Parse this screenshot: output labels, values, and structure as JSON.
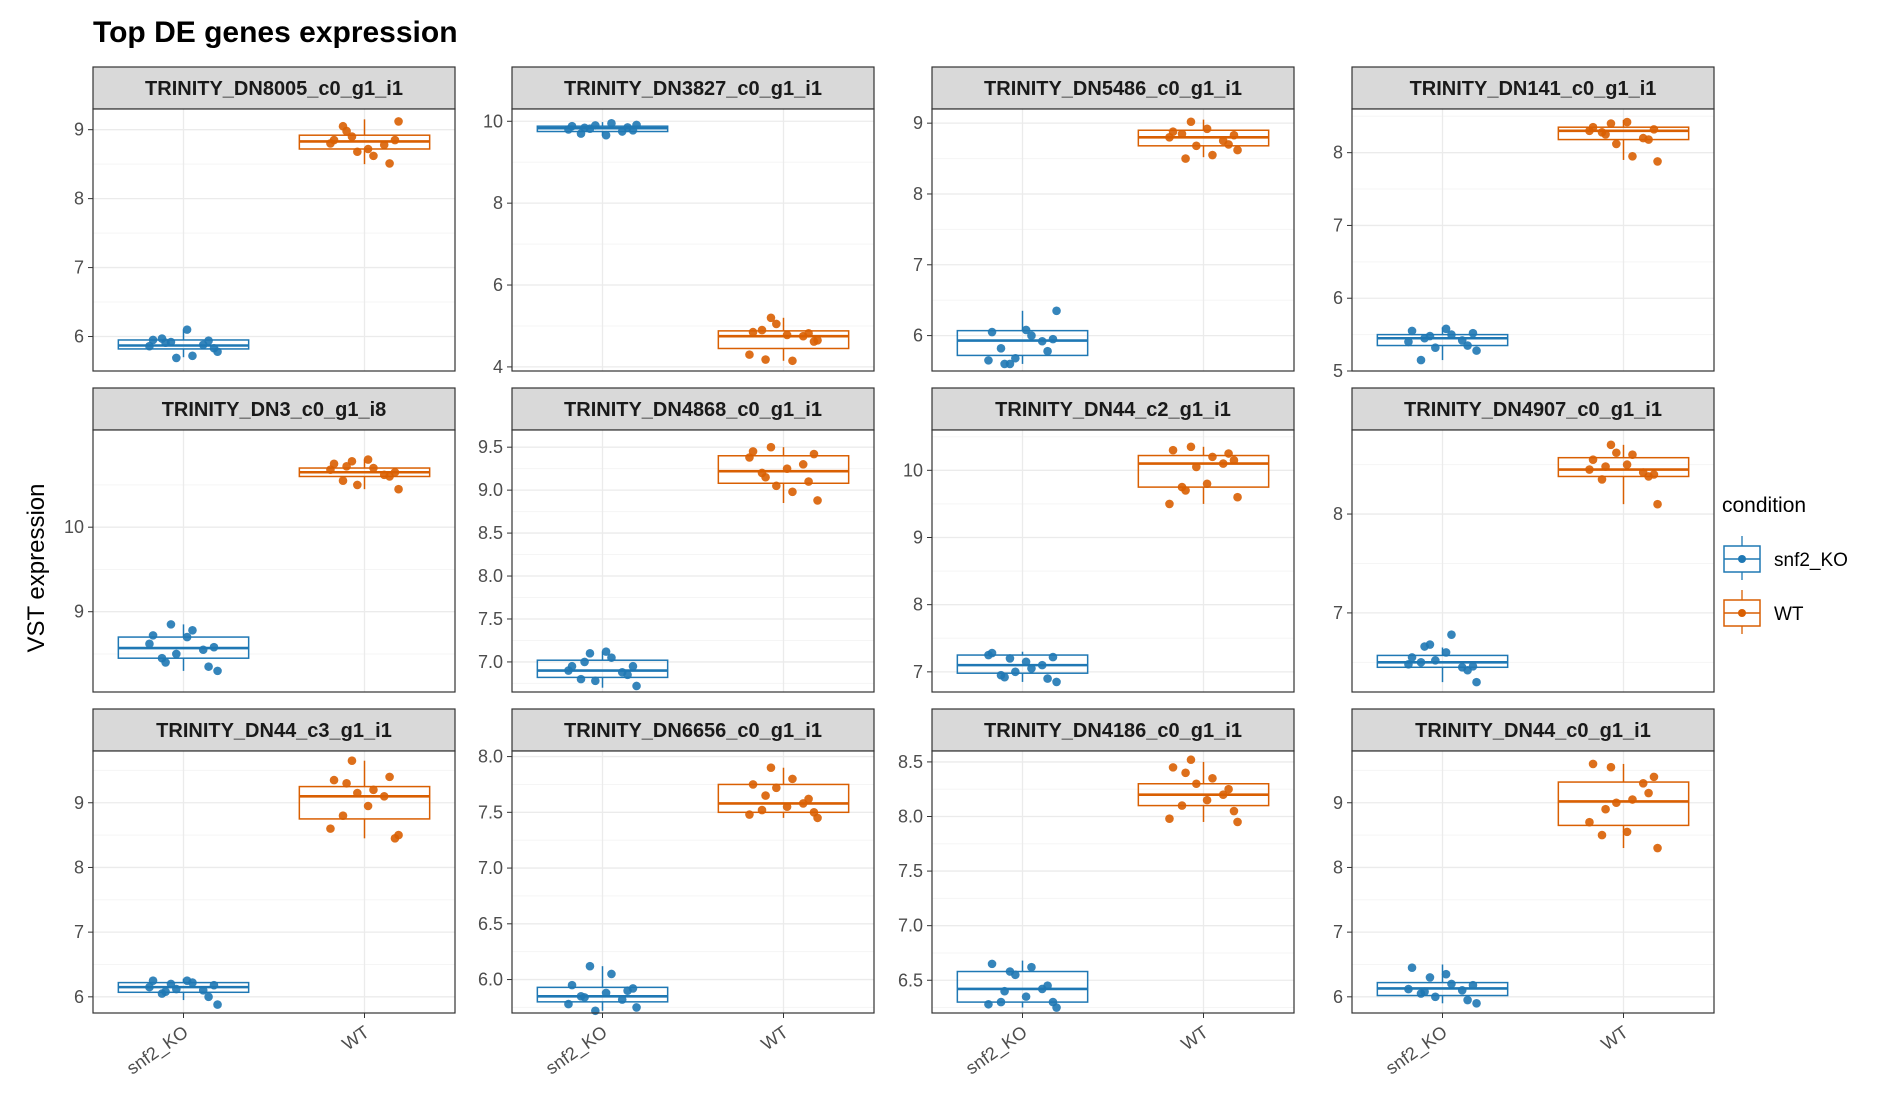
{
  "colors": {
    "snf2_KO": "#1f78b4",
    "WT": "#d95f02",
    "strip_bg": "#d9d9d9",
    "panel_border": "#333333",
    "grid_major": "#ebebeb",
    "grid_minor": "#f5f5f5"
  },
  "chart_data": {
    "type": "boxplot",
    "title": "Top DE genes expression",
    "ylabel": "VST expression",
    "xlabel": "",
    "categories": [
      "snf2_KO",
      "WT"
    ],
    "legend": {
      "title": "condition",
      "entries": [
        "snf2_KO",
        "WT"
      ],
      "position": "right"
    },
    "grid": true,
    "panels": [
      {
        "gene": "TRINITY_DN8005_c0_g1_i1",
        "ylim": [
          5.5,
          9.3
        ],
        "yticks": [
          6,
          7,
          8,
          9
        ],
        "groups": [
          {
            "name": "snf2_KO",
            "stats": [
              5.7,
              5.82,
              5.87,
              5.95,
              6.1
            ],
            "points": [
              5.95,
              5.88,
              5.92,
              5.78,
              5.97,
              5.72,
              5.86,
              5.94,
              6.1,
              5.69,
              5.83,
              5.91
            ]
          },
          {
            "name": "WT",
            "stats": [
              8.5,
              8.72,
              8.83,
              8.92,
              9.15
            ],
            "points": [
              8.85,
              8.78,
              8.9,
              9.12,
              9.05,
              8.62,
              8.8,
              8.51,
              8.72,
              8.68,
              8.85,
              8.98
            ]
          }
        ]
      },
      {
        "gene": "TRINITY_DN3827_c0_g1_i1",
        "ylim": [
          3.9,
          10.3
        ],
        "yticks": [
          4,
          6,
          8,
          10
        ],
        "groups": [
          {
            "name": "snf2_KO",
            "stats": [
              9.65,
              9.75,
              9.83,
              9.88,
              9.98
            ],
            "points": [
              9.88,
              9.75,
              9.82,
              9.91,
              9.7,
              9.95,
              9.8,
              9.85,
              9.66,
              9.9,
              9.78,
              9.84
            ]
          },
          {
            "name": "WT",
            "stats": [
              4.15,
              4.45,
              4.75,
              4.88,
              5.2
            ],
            "points": [
              4.85,
              4.75,
              5.2,
              4.65,
              4.9,
              4.15,
              4.3,
              4.82,
              4.78,
              5.05,
              4.62,
              4.18
            ]
          }
        ]
      },
      {
        "gene": "TRINITY_DN5486_c0_g1_i1",
        "ylim": [
          5.5,
          9.2
        ],
        "yticks": [
          6,
          7,
          8,
          9
        ],
        "groups": [
          {
            "name": "snf2_KO",
            "stats": [
              5.6,
              5.72,
              5.93,
              6.07,
              6.35
            ],
            "points": [
              6.05,
              5.92,
              5.6,
              6.35,
              5.82,
              6.0,
              5.65,
              5.78,
              6.08,
              5.68,
              5.95,
              5.6
            ]
          },
          {
            "name": "WT",
            "stats": [
              8.52,
              8.68,
              8.8,
              8.9,
              9.05
            ],
            "points": [
              8.88,
              8.75,
              9.02,
              8.62,
              8.85,
              8.55,
              8.8,
              8.7,
              8.92,
              8.68,
              8.83,
              8.5
            ]
          }
        ]
      },
      {
        "gene": "TRINITY_DN141_c0_g1_i1",
        "ylim": [
          5.0,
          8.6
        ],
        "yticks": [
          5,
          6,
          7,
          8
        ],
        "groups": [
          {
            "name": "snf2_KO",
            "stats": [
              5.15,
              5.35,
              5.45,
              5.5,
              5.6
            ],
            "points": [
              5.55,
              5.42,
              5.48,
              5.28,
              5.15,
              5.5,
              5.4,
              5.35,
              5.58,
              5.32,
              5.52,
              5.45
            ]
          },
          {
            "name": "WT",
            "stats": [
              7.9,
              8.18,
              8.3,
              8.35,
              8.45
            ],
            "points": [
              8.35,
              8.2,
              8.4,
              7.88,
              8.28,
              7.95,
              8.3,
              8.18,
              8.42,
              8.12,
              8.32,
              8.25
            ]
          }
        ]
      },
      {
        "gene": "TRINITY_DN3_c0_g1_i8",
        "ylim": [
          8.05,
          11.15
        ],
        "yticks": [
          9,
          10
        ],
        "groups": [
          {
            "name": "snf2_KO",
            "stats": [
              8.3,
              8.45,
              8.57,
              8.7,
              8.85
            ],
            "points": [
              8.72,
              8.55,
              8.85,
              8.3,
              8.45,
              8.78,
              8.62,
              8.35,
              8.7,
              8.5,
              8.58,
              8.4
            ]
          },
          {
            "name": "WT",
            "stats": [
              10.45,
              10.6,
              10.65,
              10.7,
              10.8
            ],
            "points": [
              10.75,
              10.62,
              10.78,
              10.45,
              10.55,
              10.7,
              10.68,
              10.6,
              10.8,
              10.5,
              10.65,
              10.72
            ]
          }
        ]
      },
      {
        "gene": "TRINITY_DN4868_c0_g1_i1",
        "ylim": [
          6.65,
          9.7
        ],
        "yticks": [
          7.0,
          7.5,
          8.0,
          8.5,
          9.0,
          9.5
        ],
        "groups": [
          {
            "name": "snf2_KO",
            "stats": [
              6.7,
              6.82,
              6.9,
              7.02,
              7.12
            ],
            "points": [
              6.95,
              6.88,
              7.1,
              6.72,
              6.8,
              7.05,
              6.9,
              6.85,
              7.12,
              6.78,
              6.95,
              7.0
            ]
          },
          {
            "name": "WT",
            "stats": [
              8.85,
              9.08,
              9.22,
              9.4,
              9.5
            ],
            "points": [
              9.45,
              9.3,
              9.5,
              8.88,
              9.2,
              8.98,
              9.38,
              9.1,
              9.25,
              9.05,
              9.42,
              9.15
            ]
          }
        ]
      },
      {
        "gene": "TRINITY_DN44_c2_g1_i1",
        "ylim": [
          6.7,
          10.6
        ],
        "yticks": [
          7,
          8,
          9,
          10
        ],
        "groups": [
          {
            "name": "snf2_KO",
            "stats": [
              6.85,
              6.98,
              7.1,
              7.25,
              7.3
            ],
            "points": [
              7.28,
              7.1,
              7.2,
              6.85,
              6.95,
              7.05,
              7.25,
              6.9,
              7.15,
              7.0,
              7.22,
              6.92
            ]
          },
          {
            "name": "WT",
            "stats": [
              9.5,
              9.75,
              10.1,
              10.22,
              10.35
            ],
            "points": [
              10.3,
              10.1,
              10.35,
              9.6,
              9.75,
              10.2,
              9.5,
              10.25,
              9.8,
              10.05,
              10.15,
              9.7
            ]
          }
        ]
      },
      {
        "gene": "TRINITY_DN4907_c0_g1_i1",
        "ylim": [
          6.2,
          8.85
        ],
        "yticks": [
          7,
          8
        ],
        "groups": [
          {
            "name": "snf2_KO",
            "stats": [
              6.3,
              6.45,
              6.5,
              6.57,
              6.65
            ],
            "points": [
              6.55,
              6.45,
              6.68,
              6.3,
              6.5,
              6.78,
              6.48,
              6.42,
              6.6,
              6.52,
              6.46,
              6.66
            ]
          },
          {
            "name": "WT",
            "stats": [
              8.1,
              8.38,
              8.45,
              8.57,
              8.7
            ],
            "points": [
              8.55,
              8.42,
              8.7,
              8.1,
              8.35,
              8.6,
              8.45,
              8.38,
              8.5,
              8.62,
              8.4,
              8.48
            ]
          }
        ]
      },
      {
        "gene": "TRINITY_DN44_c3_g1_i1",
        "ylim": [
          5.75,
          9.8
        ],
        "yticks": [
          6,
          7,
          8,
          9
        ],
        "groups": [
          {
            "name": "snf2_KO",
            "stats": [
              5.95,
              6.07,
              6.15,
              6.22,
              6.28
            ],
            "points": [
              6.25,
              6.1,
              6.2,
              5.88,
              6.05,
              6.22,
              6.15,
              6.0,
              6.25,
              6.12,
              6.18,
              6.08
            ]
          },
          {
            "name": "WT",
            "stats": [
              8.45,
              8.75,
              9.1,
              9.25,
              9.65
            ],
            "points": [
              9.35,
              9.1,
              9.65,
              8.5,
              8.8,
              9.2,
              8.6,
              9.4,
              8.95,
              9.15,
              8.45,
              9.3
            ]
          }
        ]
      },
      {
        "gene": "TRINITY_DN6656_c0_g1_i1",
        "ylim": [
          5.7,
          8.05
        ],
        "yticks": [
          6.0,
          6.5,
          7.0,
          7.5,
          8.0
        ],
        "groups": [
          {
            "name": "snf2_KO",
            "stats": [
              5.72,
              5.8,
              5.85,
              5.93,
              6.12
            ],
            "points": [
              5.95,
              5.82,
              6.12,
              5.75,
              5.85,
              6.05,
              5.78,
              5.9,
              5.88,
              5.72,
              5.92,
              5.84
            ]
          },
          {
            "name": "WT",
            "stats": [
              7.45,
              7.5,
              7.58,
              7.75,
              7.9
            ],
            "points": [
              7.75,
              7.58,
              7.9,
              7.45,
              7.52,
              7.8,
              7.48,
              7.62,
              7.55,
              7.72,
              7.5,
              7.65
            ]
          }
        ]
      },
      {
        "gene": "TRINITY_DN4186_c0_g1_i1",
        "ylim": [
          6.2,
          8.6
        ],
        "yticks": [
          6.5,
          7.0,
          7.5,
          8.0,
          8.5
        ],
        "groups": [
          {
            "name": "snf2_KO",
            "stats": [
              6.25,
              6.3,
              6.42,
              6.58,
              6.68
            ],
            "points": [
              6.65,
              6.42,
              6.58,
              6.25,
              6.3,
              6.62,
              6.28,
              6.45,
              6.35,
              6.55,
              6.3,
              6.4
            ]
          },
          {
            "name": "WT",
            "stats": [
              7.95,
              8.1,
              8.2,
              8.3,
              8.5
            ],
            "points": [
              8.45,
              8.2,
              8.52,
              7.95,
              8.1,
              8.35,
              7.98,
              8.25,
              8.15,
              8.3,
              8.05,
              8.4
            ]
          }
        ]
      },
      {
        "gene": "TRINITY_DN44_c0_g1_i1",
        "ylim": [
          5.75,
          9.8
        ],
        "yticks": [
          6,
          7,
          8,
          9
        ],
        "groups": [
          {
            "name": "snf2_KO",
            "stats": [
              5.9,
              6.02,
              6.13,
              6.22,
              6.5
            ],
            "points": [
              6.45,
              6.1,
              6.3,
              5.9,
              6.05,
              6.2,
              6.12,
              5.95,
              6.35,
              6.0,
              6.18,
              6.08
            ]
          },
          {
            "name": "WT",
            "stats": [
              8.3,
              8.65,
              9.02,
              9.32,
              9.6
            ],
            "points": [
              9.6,
              9.3,
              9.55,
              8.3,
              8.5,
              9.05,
              8.7,
              9.15,
              8.55,
              9.0,
              9.4,
              8.9
            ]
          }
        ]
      }
    ]
  }
}
